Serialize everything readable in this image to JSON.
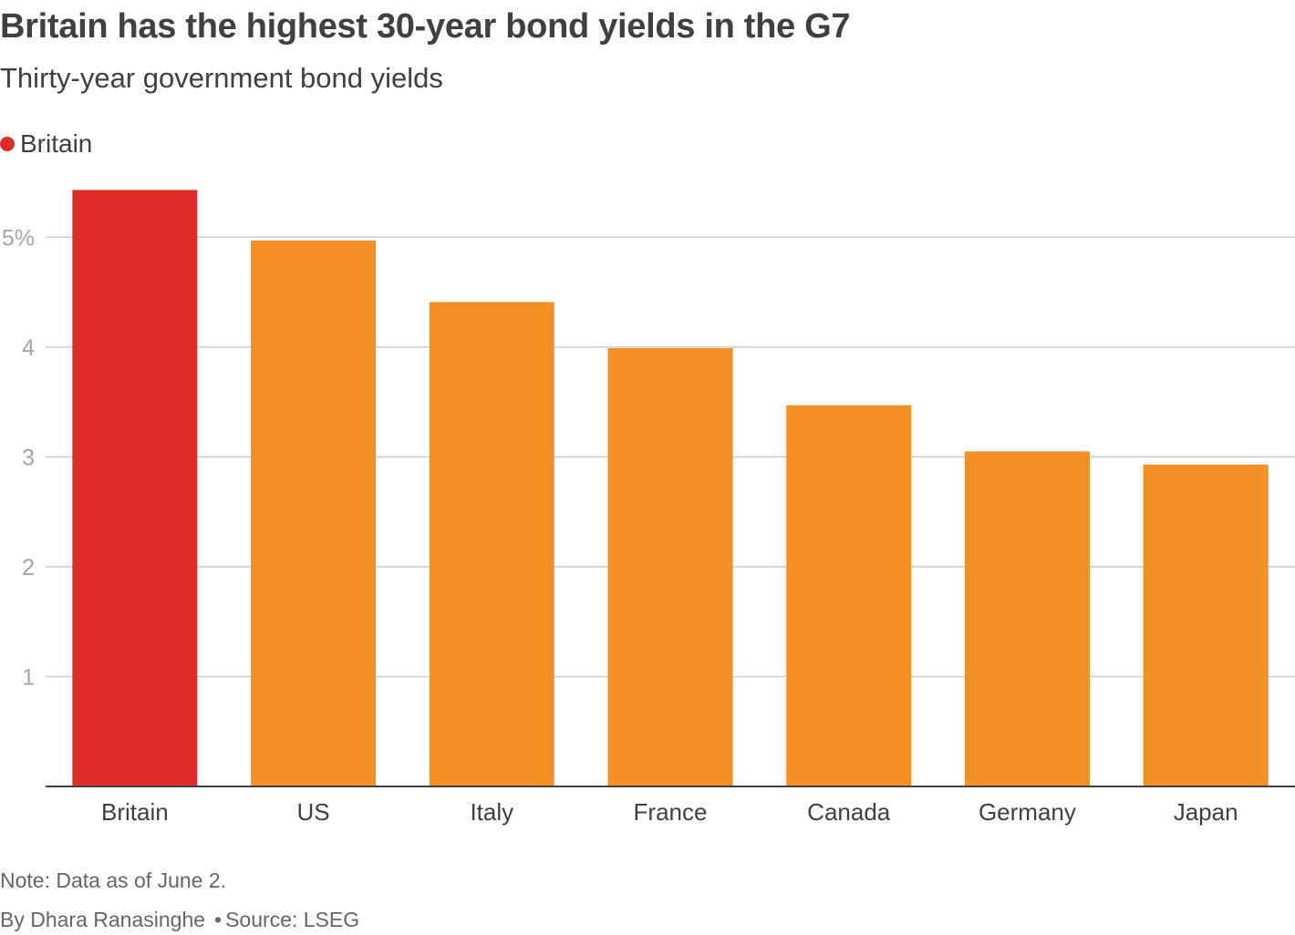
{
  "chart_data": {
    "type": "bar",
    "title": "Britain has the highest 30-year bond yields in the G7",
    "subtitle": "Thirty-year government bond yields",
    "legend": [
      {
        "name": "Britain",
        "color": "#de2d26"
      }
    ],
    "categories": [
      "Britain",
      "US",
      "Italy",
      "France",
      "Canada",
      "Germany",
      "Japan"
    ],
    "values": [
      5.43,
      4.97,
      4.41,
      3.99,
      3.47,
      3.05,
      2.93
    ],
    "highlight_color": "#de2d26",
    "bar_color": "#f39025",
    "ylim": [
      0,
      5.5
    ],
    "yticks": [
      1,
      2,
      3,
      4,
      5
    ],
    "ytick_labels": [
      "1",
      "2",
      "3",
      "4",
      "5%"
    ],
    "grid": true,
    "xlabel": "",
    "ylabel": ""
  },
  "footer": {
    "note": "Note: Data as of June 2.",
    "byline": "By Dhara Ranasinghe",
    "separator": "•",
    "source": "Source: LSEG"
  }
}
